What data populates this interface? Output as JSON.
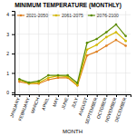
{
  "chart_data": {
    "type": "line",
    "title": "MINIMUM TEMPERATURE (MONTHLY)",
    "xlabel": "MONTH",
    "categories": [
      "JANUARY",
      "FEBRUARY",
      "MARCH",
      "APRIL",
      "MAY",
      "JUNE",
      "JULY",
      "AUGUST",
      "SEPTEMBER",
      "OCTOBER",
      "NOVEMBER",
      "DECEMBER"
    ],
    "series": [
      {
        "name": "2021-2050",
        "color": "#e08020",
        "marker": "o",
        "values": [
          0.55,
          0.45,
          0.45,
          0.65,
          0.75,
          0.75,
          0.35,
          1.9,
          2.1,
          2.4,
          2.7,
          2.4
        ]
      },
      {
        "name": "2061-2075",
        "color": "#d4b800",
        "marker": "o",
        "values": [
          0.65,
          0.45,
          0.5,
          0.75,
          0.85,
          0.8,
          0.38,
          2.2,
          2.45,
          2.85,
          3.1,
          2.65
        ]
      },
      {
        "name": "2076-2100",
        "color": "#5a8a00",
        "marker": "o",
        "values": [
          0.68,
          0.5,
          0.58,
          0.88,
          0.88,
          0.88,
          0.48,
          2.55,
          2.75,
          3.1,
          3.5,
          2.9
        ]
      }
    ],
    "ylim": [
      -0.1,
      4.2
    ],
    "yticks": [
      0,
      1,
      2,
      3,
      4
    ],
    "grid": true,
    "legend": "top-left"
  }
}
